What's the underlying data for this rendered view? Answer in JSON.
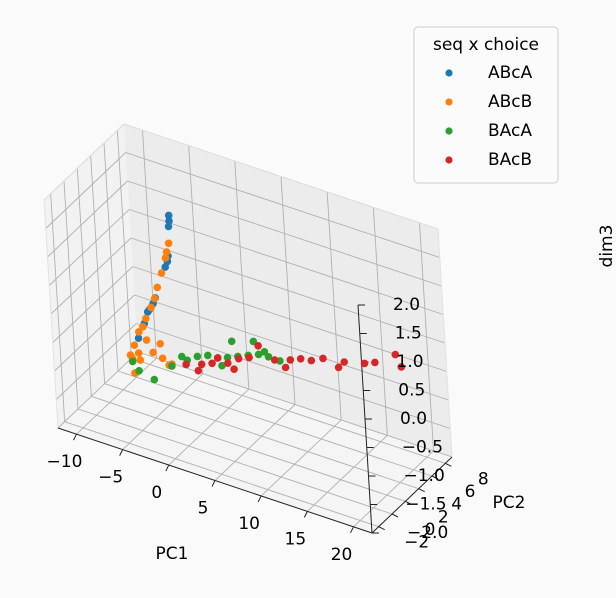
{
  "chart_data": {
    "type": "scatter",
    "projection": "3d",
    "title": "",
    "xlabel": "PC1",
    "ylabel": "PC2",
    "zlabel": "dim3",
    "xlim": [
      -12,
      22
    ],
    "ylim": [
      -3,
      9
    ],
    "zlim": [
      -2,
      2
    ],
    "xticks": [
      "−10",
      "−5",
      "0",
      "5",
      "10",
      "15",
      "20"
    ],
    "xtick_values": [
      -10,
      -5,
      0,
      5,
      10,
      15,
      20
    ],
    "yticks": [
      "−2",
      "0",
      "2",
      "4",
      "6",
      "8"
    ],
    "ytick_values": [
      -2,
      0,
      2,
      4,
      6,
      8
    ],
    "zticks": [
      "−2.0",
      "−1.5",
      "−1.0",
      "−0.5",
      "0.0",
      "0.5",
      "1.0",
      "1.5",
      "2.0"
    ],
    "ztick_values": [
      -2,
      -1.5,
      -1,
      -0.5,
      0,
      0.5,
      1,
      1.5,
      2
    ],
    "grid": true,
    "legend": {
      "title": "seq x choice",
      "placement": "upper-right"
    },
    "series": [
      {
        "name": "ABcA",
        "color": "#1f77b4",
        "points": [
          [
            -3.0,
            3.0,
            1.55
          ],
          [
            -3.0,
            3.0,
            1.45
          ],
          [
            -3.1,
            3.0,
            1.35
          ],
          [
            -3.2,
            2.8,
            0.85
          ],
          [
            -3.3,
            2.8,
            0.75
          ],
          [
            -3.5,
            2.7,
            0.65
          ],
          [
            -4.5,
            2.3,
            0.1
          ],
          [
            -4.7,
            2.2,
            0.0
          ],
          [
            -5.0,
            2.0,
            -0.1
          ],
          [
            -5.2,
            2.0,
            -0.15
          ],
          [
            -5.5,
            1.8,
            -0.35
          ],
          [
            -6.0,
            1.5,
            -0.6
          ]
        ]
      },
      {
        "name": "ABcB",
        "color": "#ff7f0e",
        "points": [
          [
            -3.2,
            3.0,
            1.05
          ],
          [
            -3.4,
            2.9,
            0.9
          ],
          [
            -3.5,
            2.8,
            0.8
          ],
          [
            -3.8,
            2.5,
            0.55
          ],
          [
            -4.2,
            2.3,
            0.3
          ],
          [
            -4.5,
            2.2,
            0.1
          ],
          [
            -4.8,
            2.0,
            -0.05
          ],
          [
            -5.3,
            1.8,
            -0.25
          ],
          [
            -5.6,
            1.7,
            -0.4
          ],
          [
            -6.0,
            1.6,
            -0.5
          ],
          [
            -6.5,
            1.5,
            -0.75
          ],
          [
            -7.0,
            1.5,
            -0.95
          ],
          [
            -6.8,
            1.5,
            -1.0
          ],
          [
            -6.0,
            1.4,
            -0.85
          ],
          [
            -5.2,
            1.6,
            -0.6
          ],
          [
            -4.4,
            1.4,
            -0.75
          ],
          [
            -3.4,
            1.4,
            -0.8
          ],
          [
            -2.4,
            1.4,
            -0.85
          ],
          [
            -3.8,
            1.7,
            -0.6
          ],
          [
            -5.8,
            1.3,
            -0.95
          ],
          [
            -6.4,
            1.2,
            -1.2
          ],
          [
            -2.8,
            1.5,
            -0.9
          ]
        ]
      },
      {
        "name": "BAcA",
        "color": "#2ca02c",
        "points": [
          [
            -6.8,
            1.5,
            -1.05
          ],
          [
            -6.0,
            1.3,
            -1.15
          ],
          [
            -4.3,
            1.2,
            -1.2
          ],
          [
            -2.5,
            1.5,
            -0.9
          ],
          [
            -1.0,
            1.8,
            -0.75
          ],
          [
            0.0,
            2.0,
            -0.65
          ],
          [
            1.0,
            2.2,
            -0.6
          ],
          [
            2.0,
            2.3,
            -0.6
          ],
          [
            3.0,
            2.4,
            -0.55
          ],
          [
            4.0,
            2.6,
            -0.5
          ],
          [
            5.0,
            2.8,
            -0.45
          ],
          [
            6.0,
            3.0,
            -0.4
          ],
          [
            7.0,
            3.1,
            -0.4
          ],
          [
            5.5,
            3.0,
            -0.2
          ],
          [
            3.5,
            2.5,
            -0.25
          ],
          [
            6.5,
            3.2,
            -0.35
          ],
          [
            2.5,
            2.2,
            -0.7
          ],
          [
            8.0,
            3.4,
            -0.45
          ],
          [
            -1.5,
            1.7,
            -0.7
          ]
        ]
      },
      {
        "name": "BAcB",
        "color": "#d62728",
        "points": [
          [
            -1.0,
            1.6,
            -0.8
          ],
          [
            0.5,
            1.9,
            -0.75
          ],
          [
            1.5,
            2.1,
            -0.7
          ],
          [
            3.0,
            2.4,
            -0.65
          ],
          [
            4.0,
            2.7,
            -0.55
          ],
          [
            5.0,
            2.9,
            -0.5
          ],
          [
            6.0,
            3.0,
            -0.25
          ],
          [
            7.5,
            3.3,
            -0.45
          ],
          [
            9.0,
            3.6,
            -0.4
          ],
          [
            10.0,
            3.8,
            -0.35
          ],
          [
            11.0,
            4.0,
            -0.35
          ],
          [
            12.0,
            4.4,
            -0.3
          ],
          [
            14.0,
            4.8,
            -0.3
          ],
          [
            16.0,
            5.1,
            -0.25
          ],
          [
            17.0,
            5.3,
            -0.2
          ],
          [
            19.0,
            5.7,
            0.0
          ],
          [
            19.5,
            5.8,
            -0.2
          ],
          [
            2.0,
            2.3,
            -0.6
          ],
          [
            0.0,
            2.0,
            -0.9
          ],
          [
            3.5,
            2.6,
            -0.75
          ],
          [
            8.5,
            3.5,
            -0.55
          ],
          [
            13.5,
            4.6,
            -0.4
          ]
        ]
      }
    ]
  }
}
